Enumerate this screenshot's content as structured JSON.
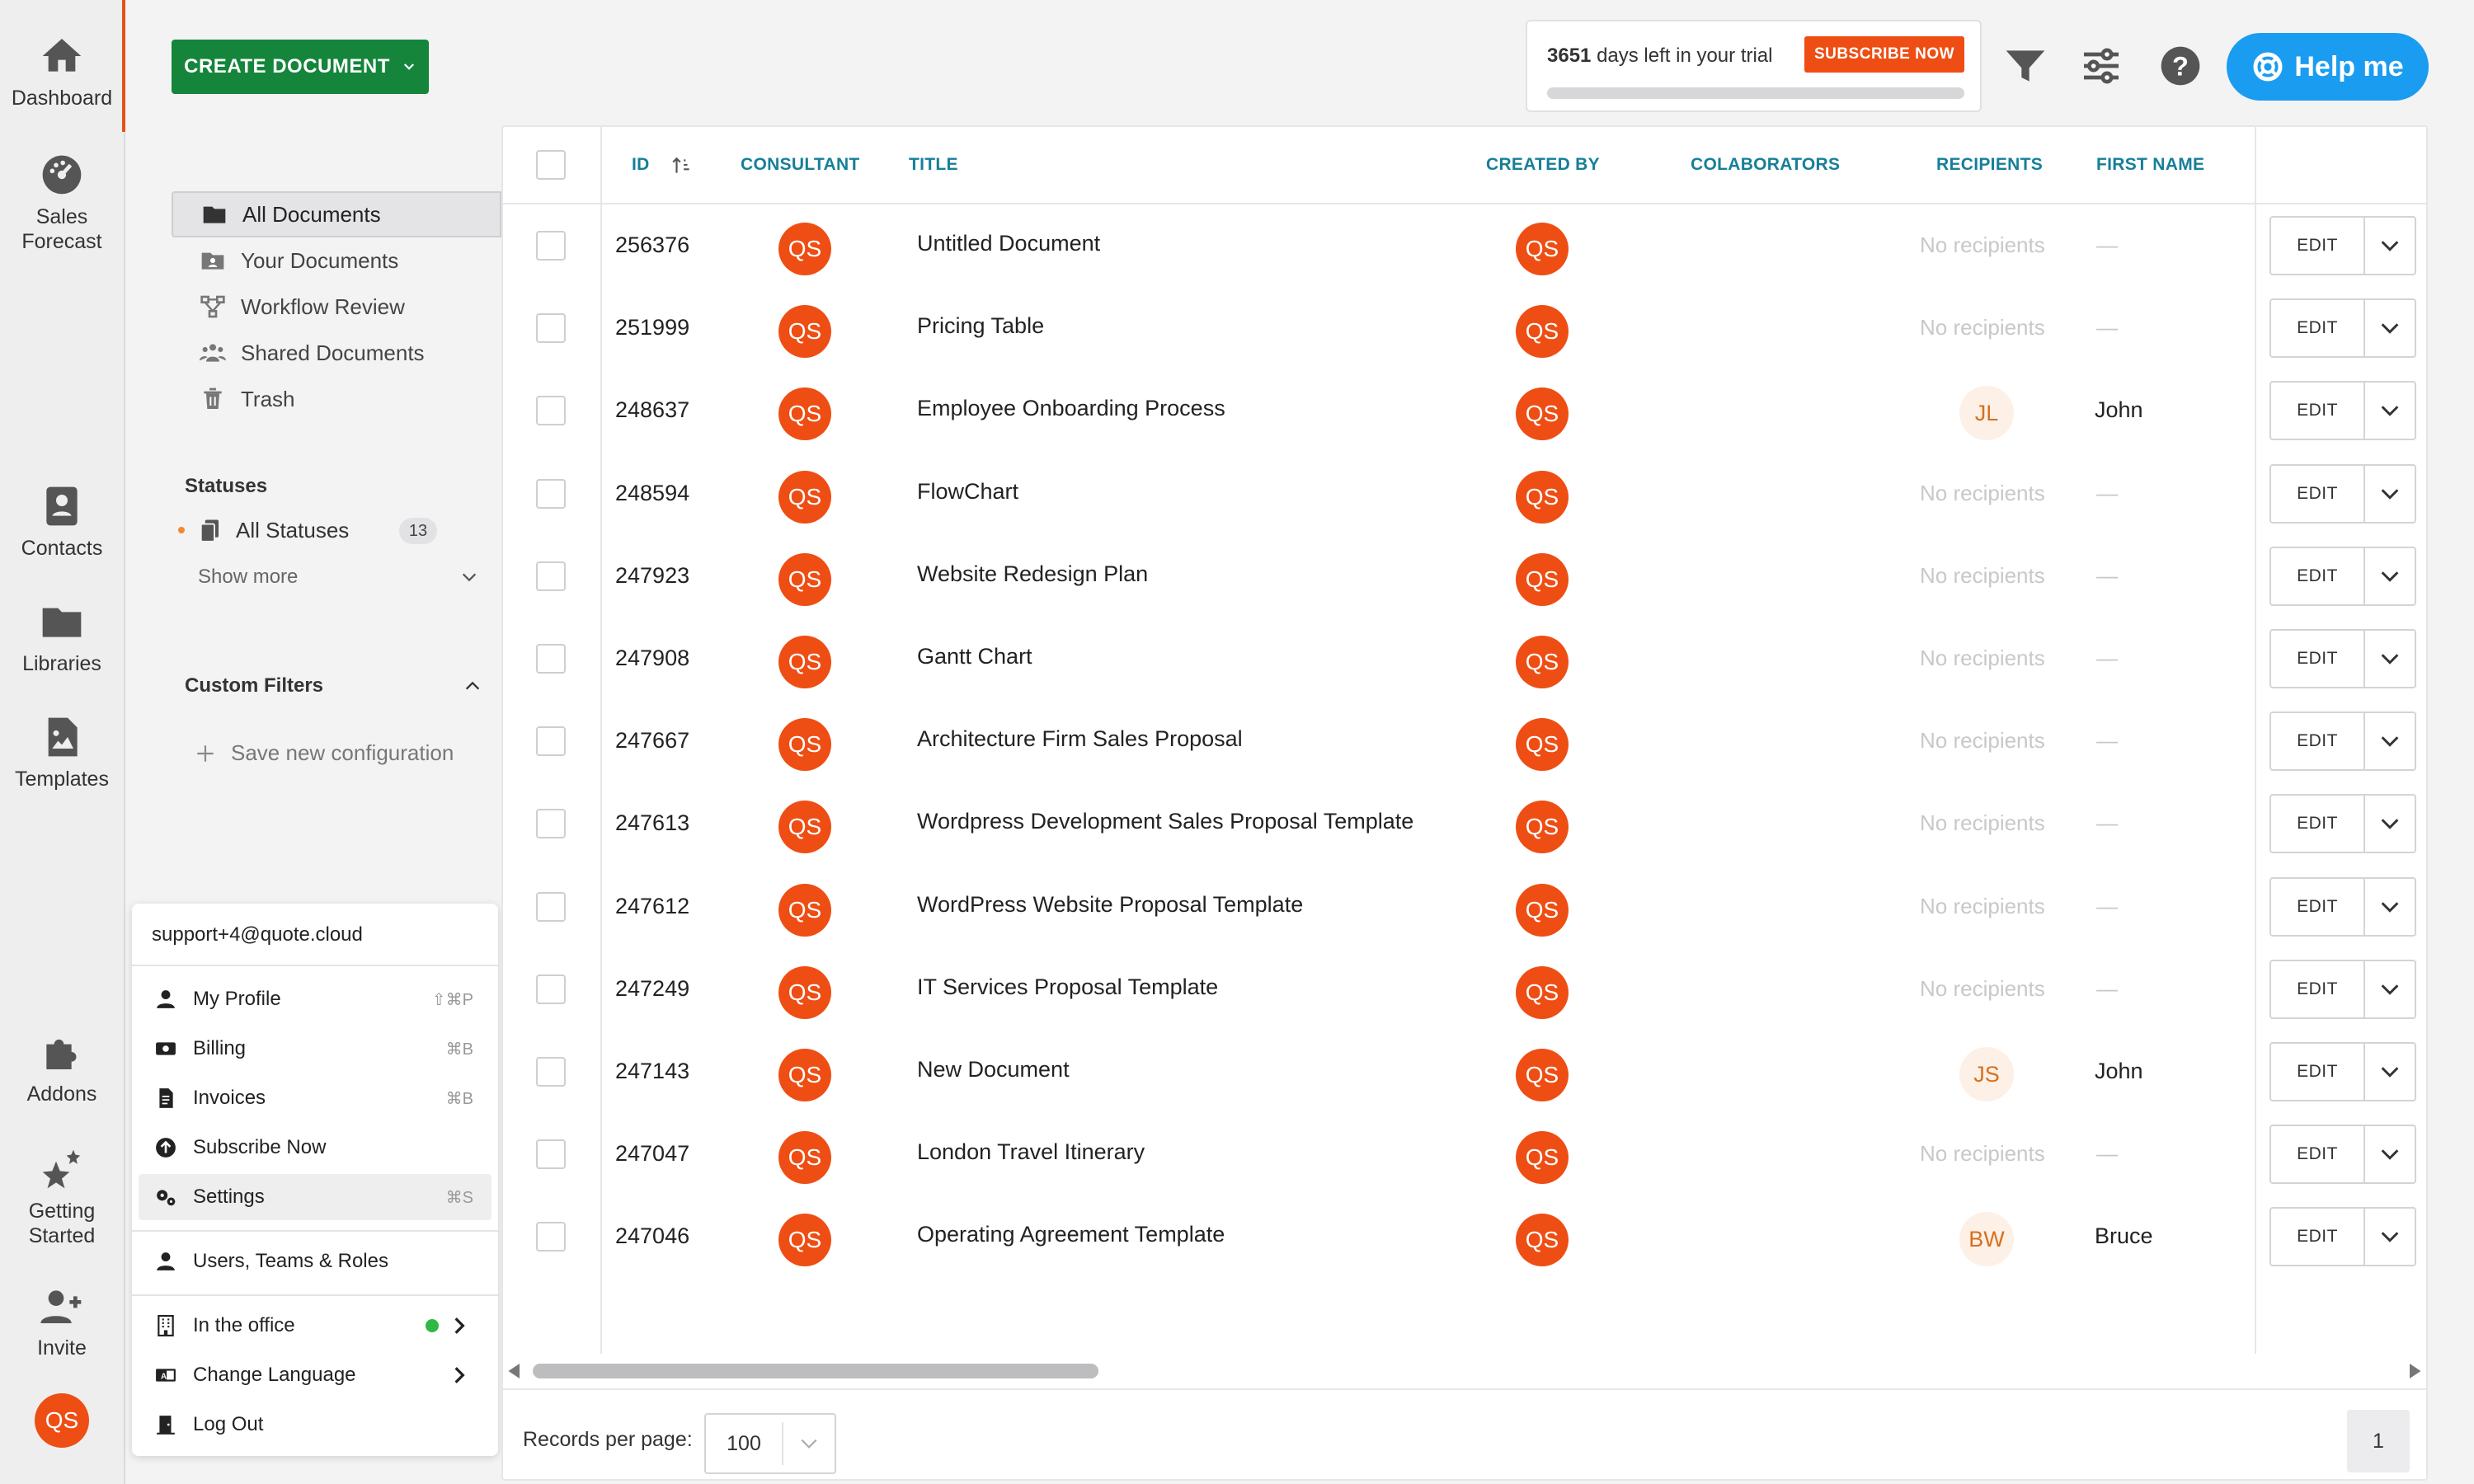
{
  "rail": {
    "items": [
      {
        "label": "Dashboard",
        "icon": "home-icon"
      },
      {
        "label": "Sales Forecast",
        "icon": "gauge-icon"
      },
      {
        "label": "Contacts",
        "icon": "contacts-icon"
      },
      {
        "label": "Libraries",
        "icon": "folder-icon"
      },
      {
        "label": "Templates",
        "icon": "template-icon"
      },
      {
        "label": "Addons",
        "icon": "puzzle-icon"
      },
      {
        "label": "Getting Started",
        "icon": "stars-icon"
      },
      {
        "label": "Invite",
        "icon": "add-user-icon"
      }
    ],
    "avatar": "QS"
  },
  "toolbar": {
    "create_label": "CREATE DOCUMENT",
    "trial_days": "3651",
    "trial_text": "days left in your trial",
    "subscribe_label": "SUBSCRIBE NOW",
    "trial_progress": 0,
    "help_label": "Help me"
  },
  "sidebar": {
    "documents": [
      {
        "label": "All Documents",
        "icon": "folder-icon"
      },
      {
        "label": "Your Documents",
        "icon": "user-folder-icon"
      },
      {
        "label": "Workflow Review",
        "icon": "workflow-icon"
      },
      {
        "label": "Shared Documents",
        "icon": "people-icon"
      },
      {
        "label": "Trash",
        "icon": "trash-icon"
      }
    ],
    "statuses_title": "Statuses",
    "all_statuses": "All Statuses",
    "all_statuses_count": "13",
    "show_more": "Show more",
    "custom_filters_title": "Custom Filters",
    "save_config": "Save new configuration"
  },
  "user_menu": {
    "email": "support+4@quote.cloud",
    "items": [
      {
        "label": "My Profile",
        "shortcut": "⇧⌘P",
        "icon": "person-icon"
      },
      {
        "label": "Billing",
        "shortcut": "⌘B",
        "icon": "billing-icon"
      },
      {
        "label": "Invoices",
        "shortcut": "⌘B",
        "icon": "invoice-icon"
      },
      {
        "label": "Subscribe Now",
        "shortcut": "",
        "icon": "upload-circle-icon"
      },
      {
        "label": "Settings",
        "shortcut": "⌘S",
        "icon": "gears-icon"
      }
    ],
    "users_teams": "Users, Teams & Roles",
    "in_office": "In the office",
    "change_language": "Change Language",
    "log_out": "Log Out"
  },
  "table": {
    "columns": {
      "id": "ID",
      "consultant": "CONSULTANT",
      "title": "TITLE",
      "created_by": "CREATED BY",
      "collaborators": "COLABORATORS",
      "recipients": "RECIPIENTS",
      "first_name": "FIRST NAME"
    },
    "edit_label": "EDIT",
    "no_recipients": "No recipients",
    "dash": "—",
    "rows": [
      {
        "id": "256376",
        "consultant": "QS",
        "title": "Untitled Document",
        "created_by": "QS",
        "recipient": "",
        "first_name": ""
      },
      {
        "id": "251999",
        "consultant": "QS",
        "title": "Pricing Table",
        "created_by": "QS",
        "recipient": "",
        "first_name": ""
      },
      {
        "id": "248637",
        "consultant": "QS",
        "title": "Employee Onboarding Process",
        "created_by": "QS",
        "recipient": "JL",
        "first_name": "John"
      },
      {
        "id": "248594",
        "consultant": "QS",
        "title": "FlowChart",
        "created_by": "QS",
        "recipient": "",
        "first_name": ""
      },
      {
        "id": "247923",
        "consultant": "QS",
        "title": "Website Redesign Plan",
        "created_by": "QS",
        "recipient": "",
        "first_name": ""
      },
      {
        "id": "247908",
        "consultant": "QS",
        "title": "Gantt Chart",
        "created_by": "QS",
        "recipient": "",
        "first_name": ""
      },
      {
        "id": "247667",
        "consultant": "QS",
        "title": "Architecture Firm Sales Proposal",
        "created_by": "QS",
        "recipient": "",
        "first_name": ""
      },
      {
        "id": "247613",
        "consultant": "QS",
        "title": "Wordpress Development Sales Proposal Template",
        "created_by": "QS",
        "recipient": "",
        "first_name": ""
      },
      {
        "id": "247612",
        "consultant": "QS",
        "title": "WordPress Website Proposal Template",
        "created_by": "QS",
        "recipient": "",
        "first_name": ""
      },
      {
        "id": "247249",
        "consultant": "QS",
        "title": "IT Services Proposal Template",
        "created_by": "QS",
        "recipient": "",
        "first_name": ""
      },
      {
        "id": "247143",
        "consultant": "QS",
        "title": "New Document",
        "created_by": "QS",
        "recipient": "JS",
        "first_name": "John"
      },
      {
        "id": "247047",
        "consultant": "QS",
        "title": "London Travel Itinerary",
        "created_by": "QS",
        "recipient": "",
        "first_name": ""
      },
      {
        "id": "247046",
        "consultant": "QS",
        "title": "Operating Agreement Template",
        "created_by": "QS",
        "recipient": "BW",
        "first_name": "Bruce"
      }
    ]
  },
  "footer": {
    "records_label": "Records per page:",
    "records_value": "100",
    "page": "1"
  },
  "colors": {
    "accent_orange": "#ee4e14",
    "create_green": "#14853a",
    "help_blue": "#1a9cf0",
    "header_teal": "#167f98"
  }
}
